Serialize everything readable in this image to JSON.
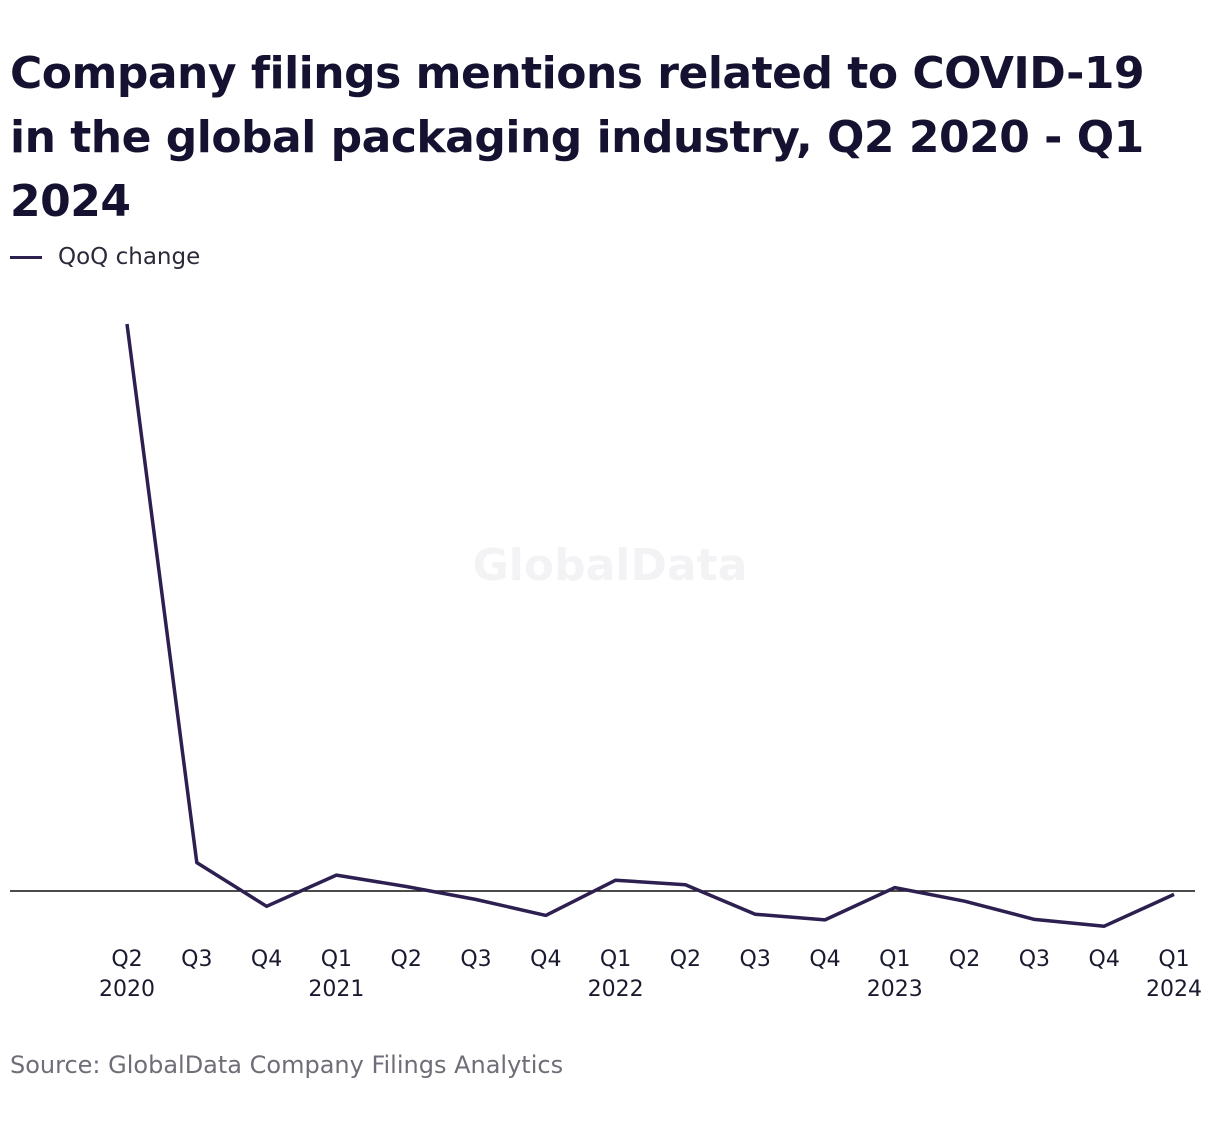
{
  "title": "Company filings mentions related to COVID-19 in the global packaging industry, Q2 2020 - Q1 2024",
  "legend": {
    "label": "QoQ change"
  },
  "source": "Source: GlobalData Company Filings Analytics",
  "watermark": "GlobalData",
  "colors": {
    "series": "#2d1f4f",
    "zero_line": "#111111",
    "text": "#141230",
    "source": "#6e6e78",
    "watermark": "#f3f3f5"
  },
  "chart_data": {
    "type": "line",
    "categories": [
      "Q2 2020",
      "Q3",
      "Q4",
      "Q1 2021",
      "Q2",
      "Q3",
      "Q4",
      "Q1 2022",
      "Q2",
      "Q3",
      "Q4",
      "Q1 2023",
      "Q2",
      "Q3",
      "Q4",
      "Q1 2024"
    ],
    "tick_labels": [
      {
        "top": "Q2",
        "bottom": "2020"
      },
      {
        "top": "Q3",
        "bottom": ""
      },
      {
        "top": "Q4",
        "bottom": ""
      },
      {
        "top": "Q1",
        "bottom": "2021"
      },
      {
        "top": "Q2",
        "bottom": ""
      },
      {
        "top": "Q3",
        "bottom": ""
      },
      {
        "top": "Q4",
        "bottom": ""
      },
      {
        "top": "Q1",
        "bottom": "2022"
      },
      {
        "top": "Q2",
        "bottom": ""
      },
      {
        "top": "Q3",
        "bottom": ""
      },
      {
        "top": "Q4",
        "bottom": ""
      },
      {
        "top": "Q1",
        "bottom": "2023"
      },
      {
        "top": "Q2",
        "bottom": ""
      },
      {
        "top": "Q3",
        "bottom": ""
      },
      {
        "top": "Q4",
        "bottom": ""
      },
      {
        "top": "Q1",
        "bottom": "2024"
      }
    ],
    "series": [
      {
        "name": "QoQ change",
        "values": [
          1000,
          50,
          -27,
          28,
          8,
          -15,
          -43,
          19,
          11,
          -41,
          -51,
          6,
          -18,
          -50,
          -62,
          -6
        ]
      }
    ],
    "ylim": [
      -70,
      1000
    ],
    "zero_line": true,
    "grid": false,
    "legend_position": "top-left",
    "xlabel": "",
    "ylabel": ""
  }
}
